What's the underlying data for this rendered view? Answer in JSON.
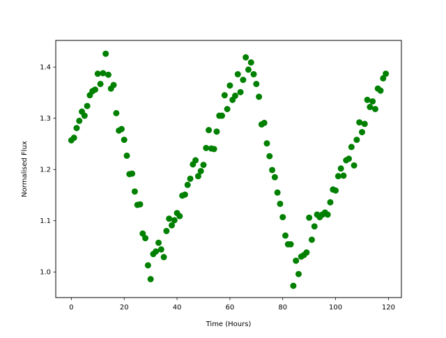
{
  "chart_data": {
    "type": "scatter",
    "title": "",
    "xlabel": "Time (Hours)",
    "ylabel": "Normalised Flux",
    "xlim": [
      -5.9,
      124.9
    ],
    "ylim": [
      0.95,
      1.452
    ],
    "xticks": [
      0,
      20,
      40,
      60,
      80,
      100,
      120
    ],
    "yticks": [
      1.0,
      1.1,
      1.2,
      1.3,
      1.4
    ],
    "xtick_labels": [
      "0",
      "20",
      "40",
      "60",
      "80",
      "100",
      "120"
    ],
    "ytick_labels": [
      "1.0",
      "1.1",
      "1.2",
      "1.3",
      "1.4"
    ],
    "grid": false,
    "marker_color": "#008000",
    "series": [
      {
        "x": [
          0.0,
          1.0,
          2.0,
          3.0,
          4.0,
          5.0,
          6.0,
          7.0,
          8.0,
          9.0,
          10.0,
          11.0,
          12.0,
          13.0,
          14.0,
          15.0,
          16.0,
          17.0,
          18.0,
          19.0,
          20.0,
          21.0,
          22.0,
          23.0,
          24.0,
          25.0,
          26.0,
          27.0,
          28.0,
          29.0,
          30.0,
          31.0,
          32.0,
          33.0,
          34.0,
          35.0,
          36.0,
          37.0,
          38.0,
          39.0,
          40.0,
          41.0,
          42.0,
          43.0,
          44.0,
          45.0,
          46.0,
          47.0,
          48.0,
          49.0,
          50.0,
          51.0,
          52.0,
          53.0,
          54.0,
          55.0,
          56.0,
          57.0,
          58.0,
          59.0,
          60.0,
          61.0,
          62.0,
          63.0,
          64.0,
          65.0,
          66.0,
          67.0,
          68.0,
          69.0,
          70.0,
          71.0,
          72.0,
          73.0,
          74.0,
          75.0,
          76.0,
          77.0,
          78.0,
          79.0,
          80.0,
          81.0,
          82.0,
          83.0,
          84.0,
          85.0,
          86.0,
          87.0,
          88.0,
          89.0,
          90.0,
          91.0,
          92.0,
          93.0,
          94.0,
          95.0,
          96.0,
          97.0,
          98.0,
          99.0,
          100.0,
          101.0,
          102.0,
          103.0,
          104.0,
          105.0,
          106.0,
          107.0,
          108.0,
          109.0,
          110.0,
          111.0,
          112.0,
          113.0,
          114.0,
          115.0,
          116.0,
          117.0,
          118.0,
          119.0
        ],
        "y": [
          1.257,
          1.262,
          1.281,
          1.295,
          1.313,
          1.305,
          1.324,
          1.345,
          1.353,
          1.356,
          1.387,
          1.367,
          1.388,
          1.426,
          1.385,
          1.358,
          1.365,
          1.31,
          1.276,
          1.279,
          1.258,
          1.227,
          1.191,
          1.192,
          1.157,
          1.131,
          1.132,
          1.075,
          1.066,
          1.013,
          0.986,
          1.035,
          1.04,
          1.057,
          1.044,
          1.029,
          1.08,
          1.104,
          1.091,
          1.101,
          1.115,
          1.109,
          1.149,
          1.151,
          1.17,
          1.182,
          1.21,
          1.218,
          1.187,
          1.197,
          1.209,
          1.242,
          1.277,
          1.241,
          1.24,
          1.274,
          1.305,
          1.305,
          1.345,
          1.318,
          1.364,
          1.336,
          1.344,
          1.386,
          1.351,
          1.375,
          1.419,
          1.395,
          1.409,
          1.386,
          1.367,
          1.342,
          1.288,
          1.291,
          1.251,
          1.226,
          1.199,
          1.185,
          1.155,
          1.133,
          1.107,
          1.071,
          1.054,
          1.054,
          0.973,
          1.022,
          0.996,
          1.03,
          1.033,
          1.038,
          1.106,
          1.063,
          1.089,
          1.112,
          1.107,
          1.112,
          1.116,
          1.112,
          1.136,
          1.161,
          1.159,
          1.187,
          1.202,
          1.188,
          1.218,
          1.221,
          1.244,
          1.208,
          1.258,
          1.292,
          1.273,
          1.289,
          1.336,
          1.322,
          1.333,
          1.318,
          1.358,
          1.354,
          1.378,
          1.387
        ]
      }
    ]
  }
}
